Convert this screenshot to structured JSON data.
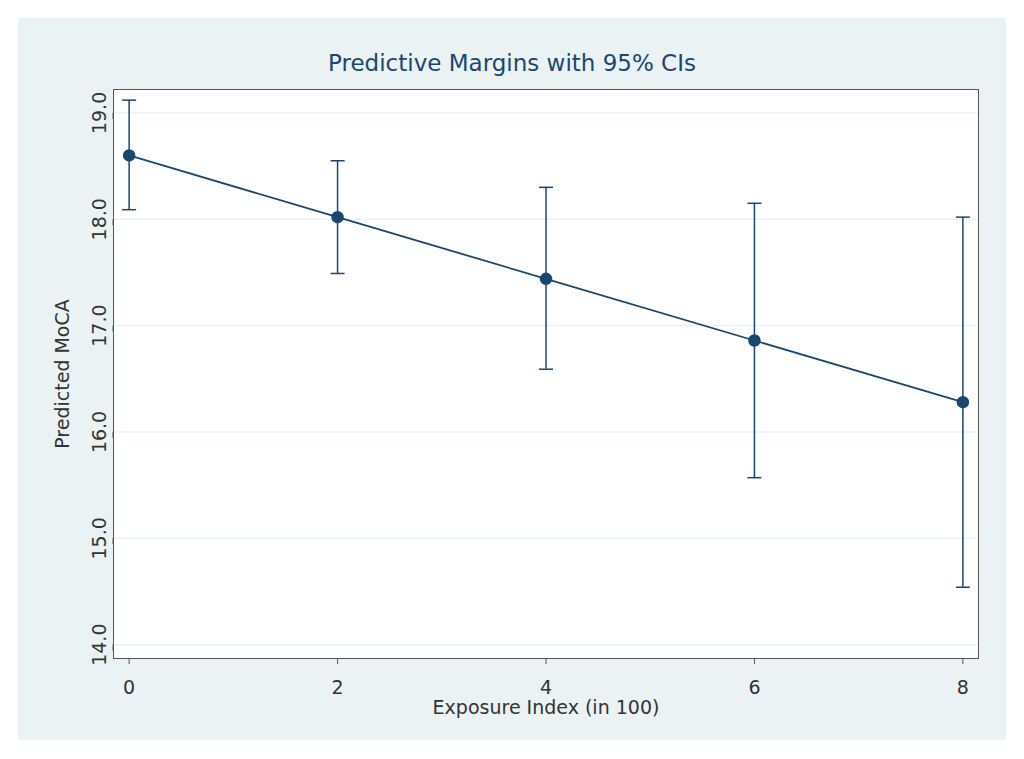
{
  "chart_data": {
    "type": "line",
    "title": "Predictive Margins with 95% CIs",
    "x_label": "Exposure Index (in 100)",
    "y_label": "Predicted MoCA",
    "x": [
      0,
      2,
      4,
      6,
      8
    ],
    "series": [
      {
        "name": "Predicted MoCA",
        "color": "#1a476f",
        "marker": "circle",
        "line_style": "solid",
        "values": [
          18.6,
          18.02,
          17.44,
          16.86,
          16.28
        ],
        "ci_lower": [
          18.09,
          17.49,
          16.59,
          15.57,
          14.54
        ],
        "ci_upper": [
          19.12,
          18.55,
          18.3,
          18.15,
          18.02
        ]
      }
    ],
    "xlim": [
      -0.15,
      8.15
    ],
    "xticks": [
      0,
      2,
      4,
      6,
      8
    ],
    "ylim": [
      13.87,
      19.22
    ],
    "yticks": [
      14,
      15,
      16,
      17,
      18,
      19
    ],
    "grid": true
  }
}
